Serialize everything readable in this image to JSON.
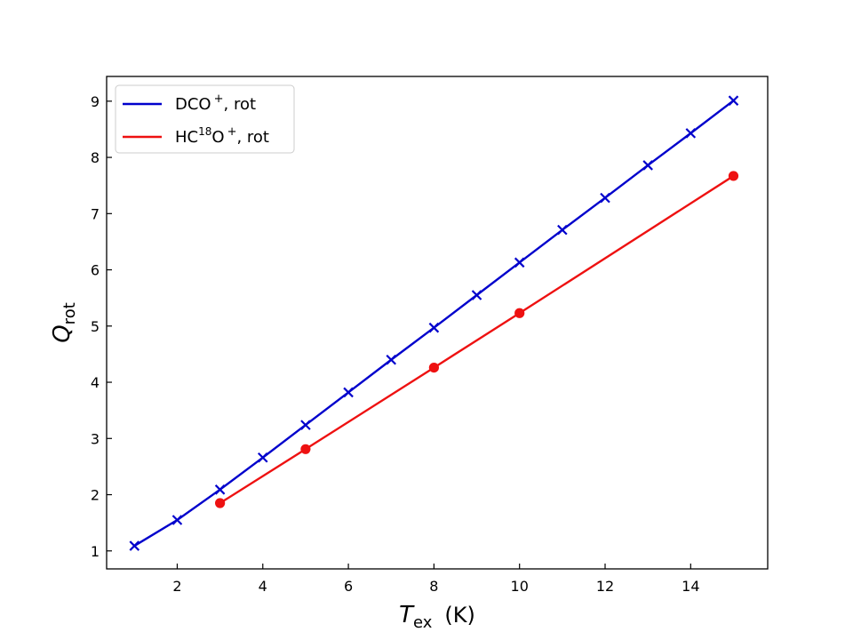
{
  "chart_data": {
    "type": "line",
    "xlabel": {
      "symbol": "T",
      "subscript": "ex",
      "unit": "(K)"
    },
    "ylabel": {
      "symbol": "Q",
      "subscript": "rot"
    },
    "xlim": [
      0.35,
      15.8
    ],
    "ylim": [
      0.68,
      9.44
    ],
    "xticks": [
      2,
      4,
      6,
      8,
      10,
      12,
      14
    ],
    "yticks": [
      1,
      2,
      3,
      4,
      5,
      6,
      7,
      8,
      9
    ],
    "grid": false,
    "legend_position": "top-left",
    "series": [
      {
        "name": "DCO⁺, rot",
        "legend": {
          "base": "DCO",
          "sup_pre": "",
          "mid": "",
          "sup": "+",
          "suffix": ", rot"
        },
        "color": "#0000cc",
        "marker": "x",
        "x": [
          1,
          2,
          3,
          4,
          5,
          6,
          7,
          8,
          9,
          10,
          11,
          12,
          13,
          14,
          15
        ],
        "y": [
          1.09,
          1.55,
          2.09,
          2.66,
          3.24,
          3.82,
          4.4,
          4.97,
          5.55,
          6.13,
          6.71,
          7.28,
          7.86,
          8.43,
          9.01
        ]
      },
      {
        "name": "HC¹⁸O⁺, rot",
        "legend": {
          "base": "HC",
          "sup_pre": "18",
          "mid": "O",
          "sup": "+",
          "suffix": ", rot"
        },
        "color": "#ee1111",
        "marker": "o",
        "x": [
          3,
          5,
          8,
          10,
          15
        ],
        "y": [
          1.85,
          2.81,
          4.26,
          5.23,
          7.67
        ]
      }
    ]
  }
}
